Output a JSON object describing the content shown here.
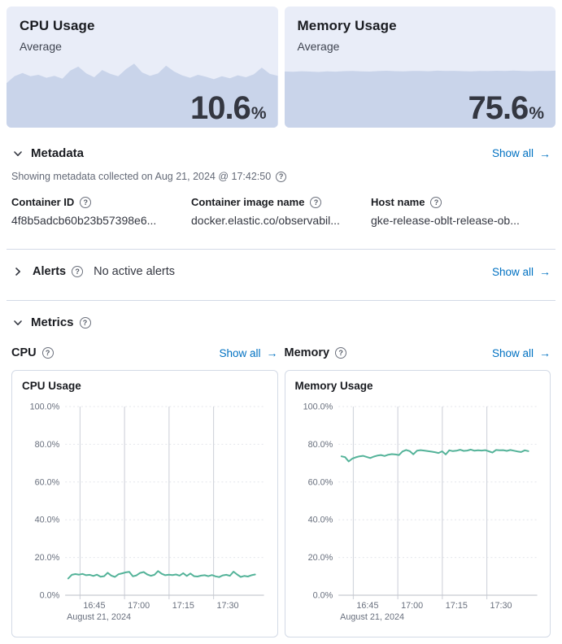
{
  "icons": {
    "arrow_right": "→",
    "question": "?"
  },
  "colors": {
    "link": "#0071c2",
    "kpi_card_bg": "#e9edf8",
    "kpi_area_fill": "#c9d4ea",
    "line_green": "#54b399",
    "grid_vertical": "#d3d6dd",
    "grid_horizontal": "#e4e6eb",
    "axis_line": "#c6c9d0"
  },
  "kpi_cards": [
    {
      "title": "CPU Usage",
      "subtitle": "Average",
      "value": "10.6",
      "unit": "%",
      "trend_max": 25,
      "trend": [
        9.2,
        10.6,
        11.3,
        10.6,
        10.9,
        10.3,
        10.7,
        10.1,
        11.8,
        12.6,
        11.2,
        10.4,
        11.9,
        11.1,
        10.6,
        12.1,
        13.2,
        11.4,
        10.7,
        11.2,
        12.8,
        11.6,
        10.8,
        10.3,
        10.9,
        10.5,
        10.0,
        10.6,
        10.2,
        10.8,
        10.4,
        11.0,
        12.4,
        11.1,
        10.7
      ]
    },
    {
      "title": "Memory Usage",
      "subtitle": "Average",
      "value": "75.6",
      "unit": "%",
      "trend_max": 160,
      "trend": [
        74.2,
        73.8,
        74.5,
        74.1,
        73.6,
        74.3,
        74.0,
        74.6,
        74.9,
        74.4,
        74.1,
        74.7,
        75.2,
        74.6,
        74.3,
        74.8,
        75.0,
        74.5,
        75.3,
        74.9,
        75.1,
        74.6,
        74.4,
        75.0,
        74.7,
        75.2,
        74.8,
        75.4,
        75.0,
        74.6,
        75.1,
        74.9,
        75.3
      ]
    }
  ],
  "metadata": {
    "title": "Metadata",
    "show_all": "Show all",
    "collected_note": "Showing metadata collected on Aug 21, 2024 @ 17:42:50",
    "fields": [
      {
        "label": "Container ID",
        "value": "4f8b5adcb60b23b57398e6..."
      },
      {
        "label": "Container image name",
        "value": "docker.elastic.co/observabil..."
      },
      {
        "label": "Host name",
        "value": "gke-release-oblt-release-ob..."
      }
    ]
  },
  "alerts": {
    "title": "Alerts",
    "status": "No active alerts",
    "show_all": "Show all"
  },
  "metrics": {
    "title": "Metrics",
    "sections": [
      {
        "label": "CPU",
        "show_all": "Show all"
      },
      {
        "label": "Memory",
        "show_all": "Show all"
      }
    ]
  },
  "chart_data": [
    {
      "type": "line",
      "title": "CPU Usage",
      "xlabel": "August 21, 2024",
      "ylabel": "",
      "ylim": [
        0,
        100
      ],
      "y_tick_step": 20,
      "y_tick_suffix": ".0%",
      "x_domain_minutes": [
        0,
        67
      ],
      "x_ticks": [
        {
          "minute": 5,
          "label": "16:45"
        },
        {
          "minute": 20,
          "label": "17:00"
        },
        {
          "minute": 35,
          "label": "17:15"
        },
        {
          "minute": 50,
          "label": "17:30"
        }
      ],
      "series_start_minute": 1,
      "series_end_minute": 64,
      "line_color": "#54b399",
      "values": [
        8.9,
        10.8,
        11.2,
        10.9,
        11.3,
        10.6,
        10.8,
        10.2,
        10.9,
        9.8,
        10.1,
        11.9,
        10.4,
        9.7,
        11.1,
        11.6,
        12.1,
        12.4,
        10.0,
        10.5,
        11.8,
        12.3,
        11.0,
        10.3,
        10.8,
        12.8,
        11.4,
        10.6,
        10.9,
        10.7,
        11.0,
        10.4,
        11.7,
        10.2,
        11.5,
        10.1,
        9.9,
        10.4,
        10.6,
        10.1,
        10.7,
        10.0,
        9.6,
        10.5,
        10.8,
        10.3,
        12.5,
        11.0,
        9.7,
        10.2,
        9.9,
        10.6,
        11.0
      ]
    },
    {
      "type": "line",
      "title": "Memory Usage",
      "xlabel": "August 21, 2024",
      "ylabel": "",
      "ylim": [
        0,
        100
      ],
      "y_tick_step": 20,
      "y_tick_suffix": ".0%",
      "x_domain_minutes": [
        0,
        67
      ],
      "x_ticks": [
        {
          "minute": 5,
          "label": "16:45"
        },
        {
          "minute": 20,
          "label": "17:00"
        },
        {
          "minute": 35,
          "label": "17:15"
        },
        {
          "minute": 50,
          "label": "17:30"
        }
      ],
      "series_start_minute": 1,
      "series_end_minute": 64,
      "line_color": "#54b399",
      "values": [
        73.6,
        73.2,
        70.9,
        72.4,
        73.1,
        73.6,
        73.9,
        73.3,
        72.7,
        73.5,
        74.0,
        74.3,
        73.8,
        74.5,
        74.8,
        74.6,
        74.3,
        76.2,
        77.0,
        76.4,
        74.7,
        76.6,
        76.9,
        76.7,
        76.4,
        76.1,
        75.8,
        75.4,
        76.3,
        74.6,
        76.8,
        76.4,
        76.6,
        77.1,
        76.5,
        76.7,
        77.2,
        76.6,
        76.8,
        76.7,
        76.9,
        76.3,
        75.6,
        77.0,
        76.8,
        76.9,
        76.5,
        77.0,
        76.6,
        76.2,
        75.9,
        76.8,
        76.4
      ]
    }
  ]
}
